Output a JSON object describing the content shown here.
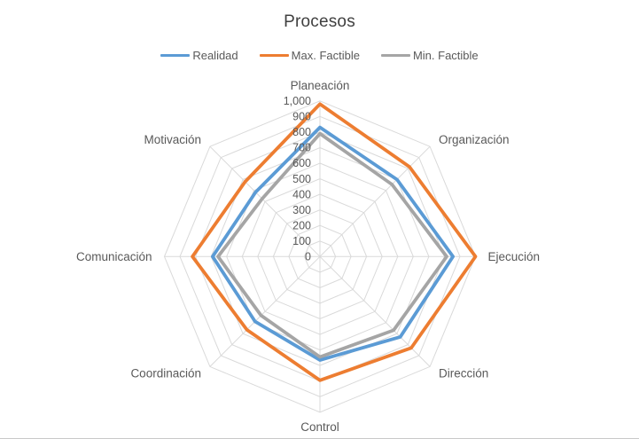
{
  "chart_data": {
    "type": "radar",
    "title": "Procesos",
    "categories": [
      "Planeación",
      "Organización",
      "Ejecución",
      "Dirección",
      "Control",
      "Coordinación",
      "Comunicación",
      "Motivación"
    ],
    "series": [
      {
        "name": "Realidad",
        "color": "#5B9BD5",
        "values": [
          830,
          700,
          855,
          730,
          665,
          590,
          690,
          585
        ]
      },
      {
        "name": "Max. Factible",
        "color": "#ED7D31",
        "values": [
          980,
          815,
          1000,
          830,
          795,
          665,
          820,
          680
        ]
      },
      {
        "name": "Min. Factible",
        "color": "#A5A5A5",
        "values": [
          790,
          655,
          815,
          670,
          645,
          535,
          655,
          525
        ]
      }
    ],
    "axis": {
      "min": 0,
      "max": 1000,
      "step": 100,
      "tick_labels": [
        "0",
        "100",
        "200",
        "300",
        "400",
        "500",
        "600",
        "700",
        "800",
        "900",
        "1,000"
      ]
    },
    "grid": true,
    "legend_position": "top",
    "colors": {
      "gridline": "#D9D9D9",
      "labels": "#595959",
      "title": "#404040"
    }
  }
}
